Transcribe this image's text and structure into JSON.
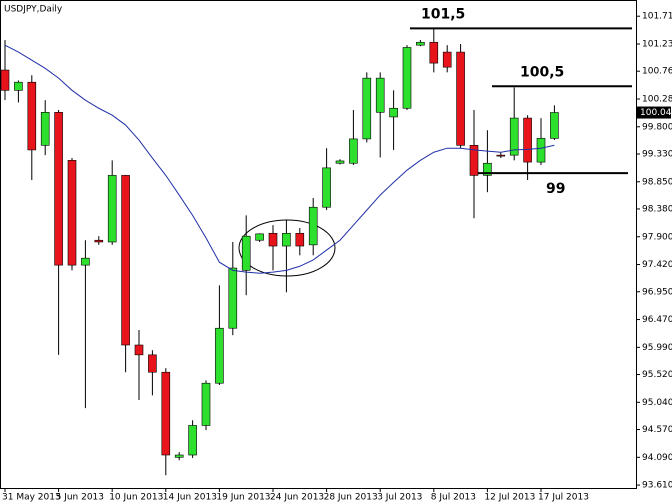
{
  "chart_data": {
    "type": "candlestick",
    "title": "USDJPY,Daily",
    "categories": [
      "31 May 2013",
      null,
      null,
      null,
      "5 Jun 2013",
      null,
      null,
      null,
      "10 Jun 2013",
      null,
      null,
      null,
      "14 Jun 2013",
      null,
      null,
      null,
      "19 Jun 2013",
      null,
      null,
      null,
      "24 Jun 2013",
      null,
      null,
      null,
      "28 Jun 2013",
      null,
      null,
      null,
      "3 Jul 2013",
      null,
      null,
      null,
      "8 Jul 2013",
      null,
      null,
      null,
      "12 Jul 2013",
      null,
      null,
      null,
      "17 Jul 2013",
      null
    ],
    "open": [
      100.78,
      100.43,
      100.57,
      99.48,
      100.05,
      99.22,
      97.41,
      97.84,
      97.81,
      98.96,
      96.03,
      95.86,
      95.56,
      94.09,
      94.13,
      94.64,
      95.37,
      96.32,
      97.32,
      97.84,
      97.96,
      97.74,
      97.96,
      97.76,
      98.41,
      99.17,
      99.17,
      99.59,
      100.05,
      99.97,
      100.12,
      101.21,
      101.26,
      101.09,
      101.09,
      99.48,
      98.96,
      99.31,
      99.31,
      99.95,
      99.19,
      99.6
    ],
    "high": [
      101.3,
      100.6,
      100.69,
      100.26,
      100.09,
      99.26,
      97.84,
      97.91,
      99.22,
      98.97,
      96.29,
      95.94,
      95.63,
      94.18,
      94.73,
      95.42,
      97.06,
      97.81,
      98.27,
      97.96,
      98.1,
      98.19,
      98.05,
      98.57,
      99.43,
      99.24,
      100.09,
      100.74,
      100.74,
      100.43,
      101.21,
      101.3,
      101.5,
      101.21,
      101.23,
      100.09,
      99.74,
      99.36,
      100.48,
      100.0,
      99.95,
      100.17
    ],
    "low": [
      100.26,
      100.22,
      98.88,
      99.31,
      95.86,
      97.32,
      94.94,
      97.76,
      97.76,
      95.56,
      95.08,
      95.16,
      93.78,
      94.04,
      94.08,
      94.56,
      95.34,
      96.2,
      96.89,
      97.81,
      97.32,
      96.94,
      97.58,
      97.58,
      98.36,
      99.15,
      99.14,
      99.53,
      99.27,
      99.4,
      100.09,
      101.19,
      100.74,
      100.74,
      99.43,
      98.22,
      98.67,
      99.26,
      99.22,
      98.88,
      99.14,
      99.57
    ],
    "close": [
      100.43,
      100.57,
      99.4,
      100.05,
      97.41,
      97.41,
      97.53,
      97.81,
      98.96,
      96.03,
      95.86,
      95.56,
      94.13,
      94.13,
      94.64,
      95.37,
      96.32,
      97.36,
      97.91,
      97.95,
      97.74,
      97.96,
      97.74,
      98.41,
      99.09,
      99.21,
      99.59,
      100.64,
      100.64,
      100.12,
      101.17,
      101.26,
      100.9,
      100.83,
      99.48,
      98.96,
      99.17,
      99.3,
      99.95,
      99.19,
      99.6,
      100.046
    ],
    "up_color": "#2ee02e",
    "down_color": "#e8141c",
    "moving_average": {
      "color": "#2030a8",
      "values": [
        101.21,
        101.09,
        100.95,
        100.81,
        100.64,
        100.43,
        100.26,
        100.12,
        100.0,
        99.83,
        99.57,
        99.26,
        98.96,
        98.62,
        98.27,
        97.88,
        97.46,
        97.32,
        97.29,
        97.27,
        97.29,
        97.32,
        97.39,
        97.5,
        97.67,
        97.84,
        98.1,
        98.36,
        98.62,
        98.84,
        99.05,
        99.22,
        99.36,
        99.43,
        99.43,
        99.4,
        99.38,
        99.36,
        99.4,
        99.41,
        99.43,
        99.48
      ]
    },
    "ylim": [
      93.56,
      101.99
    ],
    "yticks": [
      {
        "value": 101.71,
        "label": "101.710"
      },
      {
        "value": 101.23,
        "label": "101.230"
      },
      {
        "value": 100.76,
        "label": "100.760"
      },
      {
        "value": 100.28,
        "label": "100.280"
      },
      {
        "value": 99.8,
        "label": "99.800"
      },
      {
        "value": 99.33,
        "label": "99.330"
      },
      {
        "value": 98.85,
        "label": "98.850"
      },
      {
        "value": 98.38,
        "label": "98.380"
      },
      {
        "value": 97.9,
        "label": "97.900"
      },
      {
        "value": 97.42,
        "label": "97.420"
      },
      {
        "value": 96.95,
        "label": "96.950"
      },
      {
        "value": 96.47,
        "label": "96.470"
      },
      {
        "value": 95.99,
        "label": "95.990"
      },
      {
        "value": 95.52,
        "label": "95.520"
      },
      {
        "value": 95.04,
        "label": "95.040"
      },
      {
        "value": 94.57,
        "label": "94.570"
      },
      {
        "value": 94.09,
        "label": "94.090"
      },
      {
        "value": 93.61,
        "label": "93.610"
      }
    ],
    "last_price": {
      "value": 100.046,
      "label": "100.046"
    },
    "levels": [
      {
        "label": "101,5",
        "value": 101.5
      },
      {
        "label": "100,5",
        "value": 100.5
      },
      {
        "label": "99",
        "value": 99
      }
    ]
  }
}
